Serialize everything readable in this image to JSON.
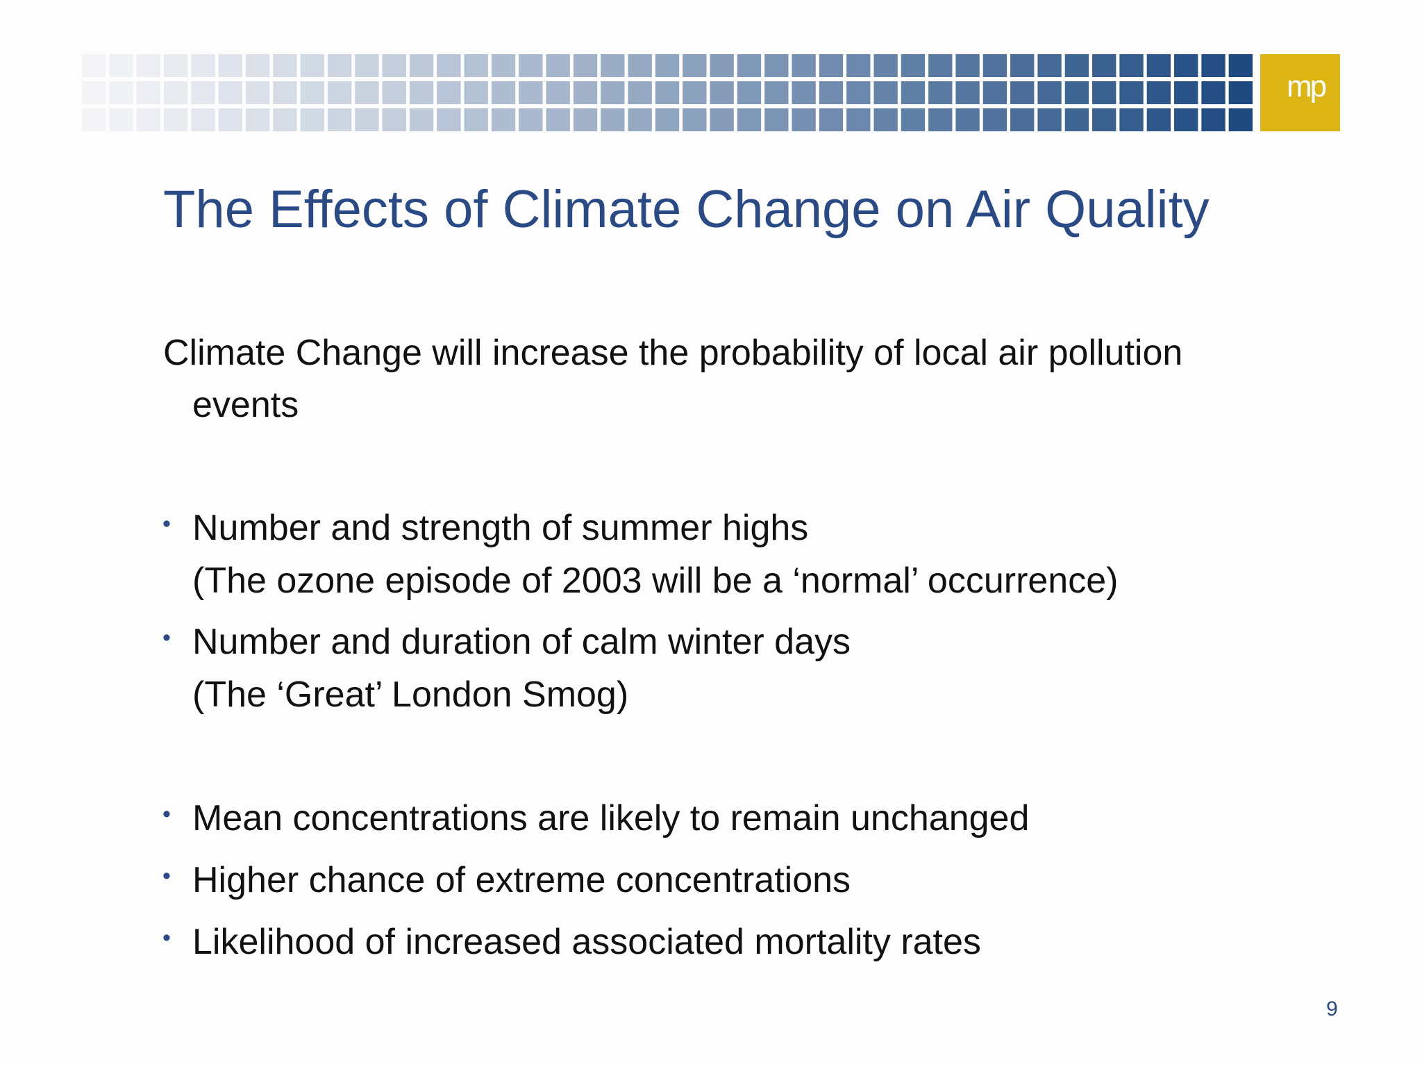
{
  "logo": "mp",
  "title": "The Effects of Climate Change on Air Quality",
  "intro": {
    "line1": "Climate Change will increase the probability of local air pollution",
    "line2": "events"
  },
  "bullets": [
    {
      "text": "Number and strength of summer highs",
      "note": "(The ozone episode of 2003 will be a ‘normal’ occurrence)"
    },
    {
      "text": "Number and duration of calm winter days",
      "note": "(The ‘Great’ London Smog)"
    },
    {
      "text": "Mean concentrations are likely to remain unchanged"
    },
    {
      "text": "Higher chance of extreme concentrations"
    },
    {
      "text": "Likelihood of increased associated mortality rates"
    }
  ],
  "page_number": "9"
}
